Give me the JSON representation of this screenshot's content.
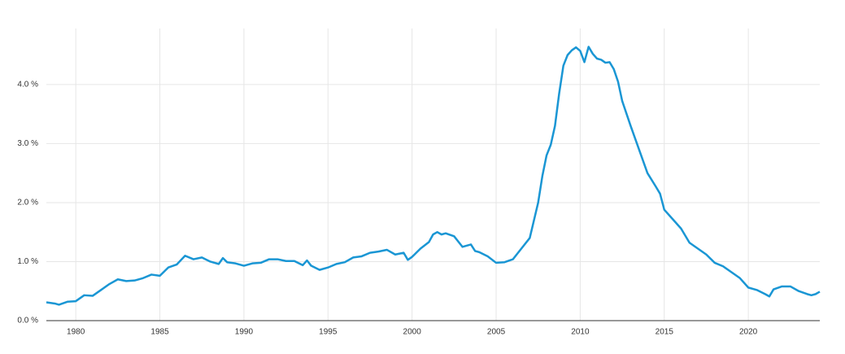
{
  "chart_data": {
    "type": "line",
    "x": [
      1978.25,
      1978.75,
      1979,
      1979.5,
      1980,
      1980.5,
      1981,
      1981.5,
      1982,
      1982.5,
      1983,
      1983.5,
      1984,
      1984.5,
      1985,
      1985.5,
      1986,
      1986.5,
      1987,
      1987.5,
      1988,
      1988.5,
      1988.75,
      1989,
      1989.5,
      1990,
      1990.5,
      1991,
      1991.5,
      1992,
      1992.5,
      1993,
      1993.5,
      1993.75,
      1994,
      1994.5,
      1995,
      1995.5,
      1996,
      1996.5,
      1997,
      1997.5,
      1998,
      1998.5,
      1999,
      1999.5,
      1999.75,
      2000,
      2000.5,
      2001,
      2001.25,
      2001.5,
      2001.75,
      2002,
      2002.5,
      2003,
      2003.5,
      2003.75,
      2004,
      2004.5,
      2005,
      2005.5,
      2006,
      2006.5,
      2007,
      2007.5,
      2007.75,
      2008,
      2008.25,
      2008.5,
      2008.75,
      2009,
      2009.25,
      2009.5,
      2009.75,
      2010,
      2010.25,
      2010.5,
      2010.75,
      2011,
      2011.25,
      2011.5,
      2011.75,
      2012,
      2012.25,
      2012.5,
      2013,
      2013.5,
      2014,
      2014.5,
      2014.75,
      2015,
      2015.5,
      2016,
      2016.5,
      2017,
      2017.5,
      2018,
      2018.5,
      2019,
      2019.5,
      2020,
      2020.5,
      2021,
      2021.25,
      2021.5,
      2022,
      2022.5,
      2023,
      2023.5,
      2023.75,
      2024,
      2024.25
    ],
    "series": [
      {
        "color": "#1a96d4",
        "values": [
          0.31,
          0.29,
          0.27,
          0.32,
          0.33,
          0.43,
          0.42,
          0.52,
          0.62,
          0.7,
          0.67,
          0.68,
          0.72,
          0.78,
          0.76,
          0.9,
          0.95,
          1.1,
          1.04,
          1.07,
          1.0,
          0.96,
          1.06,
          0.99,
          0.97,
          0.93,
          0.97,
          0.98,
          1.04,
          1.04,
          1.01,
          1.01,
          0.94,
          1.02,
          0.93,
          0.86,
          0.9,
          0.96,
          0.99,
          1.07,
          1.09,
          1.15,
          1.17,
          1.2,
          1.12,
          1.15,
          1.03,
          1.08,
          1.22,
          1.33,
          1.46,
          1.5,
          1.46,
          1.48,
          1.43,
          1.25,
          1.29,
          1.18,
          1.16,
          1.09,
          0.98,
          0.99,
          1.04,
          1.22,
          1.4,
          2.0,
          2.45,
          2.8,
          2.98,
          3.3,
          3.85,
          4.32,
          4.5,
          4.58,
          4.63,
          4.57,
          4.38,
          4.64,
          4.52,
          4.44,
          4.42,
          4.37,
          4.38,
          4.26,
          4.05,
          3.72,
          3.3,
          2.9,
          2.5,
          2.27,
          2.15,
          1.88,
          1.72,
          1.56,
          1.32,
          1.22,
          1.12,
          0.98,
          0.92,
          0.82,
          0.72,
          0.56,
          0.52,
          0.45,
          0.41,
          0.53,
          0.58,
          0.58,
          0.5,
          0.45,
          0.43,
          0.45,
          0.49
        ]
      }
    ],
    "xlim": [
      1978.25,
      2024.25
    ],
    "xticks": [
      1980,
      1985,
      1990,
      1995,
      2000,
      2005,
      2010,
      2015,
      2020
    ],
    "ylim": [
      0,
      4.95
    ],
    "yticks": [
      {
        "value": 0,
        "label": "0.0 %"
      },
      {
        "value": 1,
        "label": "1.0 %"
      },
      {
        "value": 2,
        "label": "2.0 %"
      },
      {
        "value": 3,
        "label": "3.0 %"
      },
      {
        "value": 4,
        "label": "4.0 %"
      }
    ],
    "grid": true
  }
}
